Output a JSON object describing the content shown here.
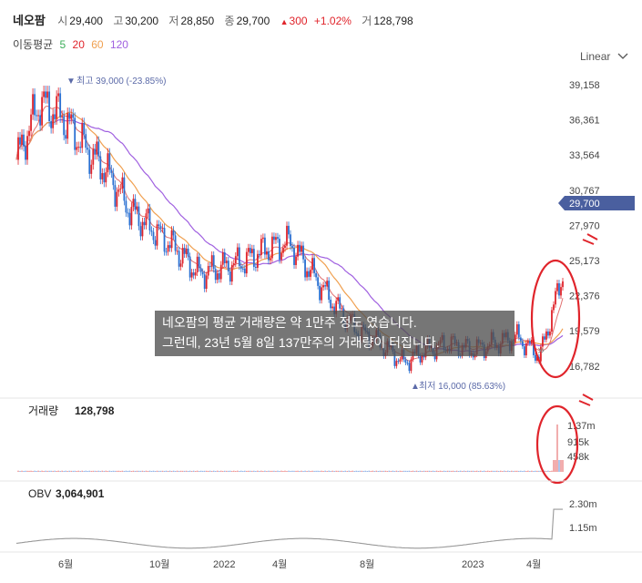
{
  "header": {
    "name": "네오팜",
    "open_label": "시",
    "open": "29,400",
    "high_label": "고",
    "high": "30,200",
    "low_label": "저",
    "low": "28,850",
    "close_label": "종",
    "close": "29,700",
    "change_arrow": "▲",
    "change": "300",
    "change_pct": "+1.02%",
    "volume_label": "거",
    "volume": "128,798"
  },
  "ma": {
    "label": "이동평균",
    "periods": [
      "5",
      "20",
      "60",
      "120"
    ],
    "colors": [
      "#3cae5a",
      "#e0242b",
      "#f0a050",
      "#a060e0"
    ]
  },
  "scale_button": "Linear",
  "price_axis": [
    "39,158",
    "36,361",
    "33,564",
    "30,767",
    "27,970",
    "25,173",
    "22,376",
    "19,579",
    "16,782"
  ],
  "current_price_tag": "29,700",
  "annotations": {
    "high": "최고 39,000 (-23.85%)",
    "low": "최저 16,000 (85.63%)"
  },
  "overlay_text": [
    "네오팜의 평균 거래량은 약 1만주 정도 였습니다.",
    "그런데, 23년 5월 8일 137만주의 거래량이 터집니다."
  ],
  "volume_panel": {
    "label": "거래량",
    "value": "128,798",
    "axis": [
      "1.37m",
      "915k",
      "458k"
    ]
  },
  "obv_panel": {
    "label": "OBV",
    "value": "3,064,901",
    "axis": [
      "2.30m",
      "1.15m"
    ]
  },
  "x_axis": [
    "6월",
    "10월",
    "2022",
    "4월",
    "8월",
    "2023",
    "4월"
  ],
  "colors": {
    "up": "#e0242b",
    "down": "#2a6fd1",
    "accent": "#4a5f9f",
    "circle": "#e0242b",
    "obv_line": "#999999"
  },
  "chart_data": {
    "type": "line",
    "x": [
      "2021-05",
      "2021-06",
      "2021-07",
      "2021-08",
      "2021-09",
      "2021-10",
      "2021-11",
      "2021-12",
      "2022-01",
      "2022-02",
      "2022-03",
      "2022-04",
      "2022-05",
      "2022-06",
      "2022-07",
      "2022-08",
      "2022-09",
      "2022-10",
      "2022-11",
      "2022-12",
      "2023-01",
      "2023-02",
      "2023-03",
      "2023-04",
      "2023-05"
    ],
    "series": [
      {
        "values": [
          33000,
          37500,
          36500,
          34000,
          32000,
          29000,
          27500,
          26000,
          24000,
          24500,
          25000,
          26000,
          26500,
          24000,
          21500,
          19500,
          18500,
          17000,
          18000,
          18500,
          18000,
          18500,
          19000,
          17500,
          24000
        ]
      }
    ],
    "ylim": [
      16000,
      40000
    ],
    "volume_max": 1370000,
    "obv_range": [
      0,
      2300000
    ]
  }
}
